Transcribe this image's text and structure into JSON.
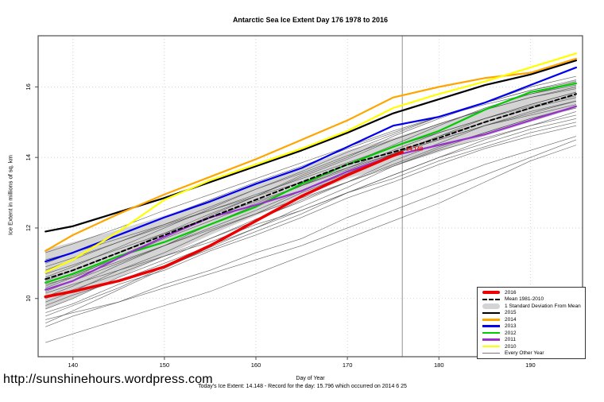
{
  "title": "Antarctic Sea Ice Extent Day 176 1978 to 2016",
  "footer": {
    "url": "http://sunshinehours.wordpress.com",
    "note": "Today's Ice Extent: 14.148  - Record for the day: 15.796 which occurred on 2014 6 25"
  },
  "chart_data": {
    "type": "line",
    "title": "Antarctic Sea Ice Extent Day 176 1978 to 2016",
    "xlabel": "Day of Year",
    "ylabel": "Ice Extent in millions of sq. km",
    "xlim": [
      136.2,
      195.7
    ],
    "ylim": [
      8.35,
      17.45
    ],
    "xticks": [
      140,
      150,
      160,
      170,
      180,
      190
    ],
    "yticks": [
      10,
      12,
      14,
      16
    ],
    "grid": "dotted",
    "grid_color": "#c9c9c9",
    "frame_color": "#4d4d4d",
    "vline": {
      "x": 176,
      "color": "#909090"
    },
    "x": [
      137,
      140,
      145,
      150,
      155,
      160,
      165,
      170,
      175,
      180,
      185,
      190,
      195
    ],
    "band": {
      "label": "1 Standard Deviation From Mean",
      "color": "#d4d4d4",
      "top": [
        11.4,
        11.6,
        11.95,
        12.35,
        12.8,
        13.25,
        13.72,
        14.2,
        14.55,
        14.95,
        15.4,
        15.8,
        16.2
      ],
      "bottom": [
        9.7,
        10.0,
        10.6,
        11.2,
        11.8,
        12.35,
        12.88,
        13.4,
        13.75,
        14.15,
        14.6,
        15.0,
        15.4
      ]
    },
    "series": [
      {
        "name": "2015",
        "color": "#000000",
        "width": 2.2,
        "values": [
          11.9,
          12.05,
          12.45,
          12.85,
          13.3,
          13.75,
          14.2,
          14.7,
          15.25,
          15.65,
          16.05,
          16.35,
          16.75
        ]
      },
      {
        "name": "2014",
        "color": "#FFA500",
        "width": 2.2,
        "values": [
          11.35,
          11.8,
          12.4,
          12.95,
          13.45,
          13.95,
          14.5,
          15.05,
          15.7,
          16.0,
          16.25,
          16.4,
          16.8
        ]
      },
      {
        "name": "2013",
        "color": "#0000EE",
        "width": 2.2,
        "values": [
          11.05,
          11.3,
          11.8,
          12.3,
          12.75,
          13.25,
          13.7,
          14.3,
          14.9,
          15.15,
          15.55,
          16.05,
          16.55
        ]
      },
      {
        "name": "2012",
        "color": "#00CC00",
        "width": 2.2,
        "values": [
          10.45,
          10.7,
          11.2,
          11.6,
          12.1,
          12.6,
          13.25,
          13.8,
          14.3,
          14.75,
          15.35,
          15.85,
          16.1
        ]
      },
      {
        "name": "2011",
        "color": "#9932CC",
        "width": 2.2,
        "values": [
          10.25,
          10.5,
          11.15,
          11.75,
          12.3,
          12.65,
          13.05,
          13.6,
          14.05,
          14.35,
          14.65,
          15.05,
          15.45
        ]
      },
      {
        "name": "2010",
        "color": "#FFFF00",
        "width": 2.2,
        "values": [
          10.75,
          11.1,
          11.9,
          12.8,
          13.35,
          13.8,
          14.25,
          14.75,
          15.4,
          15.8,
          16.15,
          16.55,
          16.95
        ]
      },
      {
        "name": "Mean 1981-2010",
        "color": "#000000",
        "width": 2,
        "dash": "5 3.5",
        "values": [
          10.55,
          10.8,
          11.3,
          11.8,
          12.3,
          12.8,
          13.3,
          13.8,
          14.15,
          14.55,
          15.0,
          15.4,
          15.8
        ]
      },
      {
        "name": "2016",
        "color": "#EE0000",
        "width": 3.5,
        "x": [
          137,
          140,
          145,
          150,
          155,
          160,
          165,
          170,
          175,
          176
        ],
        "values": [
          10.05,
          10.2,
          10.5,
          10.9,
          11.5,
          12.2,
          12.9,
          13.5,
          14.05,
          14.148
        ]
      }
    ],
    "others": {
      "name": "Every Other Year",
      "color": "#444444",
      "width": 0.65,
      "lines": [
        [
          8.75,
          9.0,
          9.4,
          9.8,
          10.2,
          10.7,
          11.2,
          11.7,
          12.2,
          12.7,
          13.3,
          13.9,
          14.35
        ],
        [
          9.2,
          9.5,
          9.9,
          10.4,
          10.8,
          11.3,
          11.7,
          12.3,
          12.8,
          13.3,
          13.8,
          14.2,
          14.6
        ],
        [
          9.3,
          9.65,
          10.25,
          10.85,
          11.45,
          12.0,
          12.6,
          13.15,
          13.75,
          14.25,
          14.7,
          15.1,
          15.45
        ],
        [
          9.4,
          9.6,
          9.9,
          10.3,
          10.7,
          11.1,
          11.5,
          12.0,
          12.5,
          13.0,
          13.5,
          14.0,
          14.5
        ],
        [
          9.5,
          9.8,
          10.3,
          10.9,
          11.4,
          11.9,
          12.4,
          13.0,
          13.5,
          14.0,
          14.5,
          14.9,
          15.3
        ],
        [
          9.6,
          9.85,
          10.4,
          10.8,
          11.35,
          11.8,
          12.3,
          12.85,
          13.3,
          13.8,
          14.25,
          14.6,
          14.9
        ],
        [
          9.7,
          10.0,
          10.6,
          11.1,
          11.7,
          12.2,
          12.8,
          13.3,
          13.9,
          14.4,
          14.9,
          15.3,
          15.6
        ],
        [
          9.8,
          10.1,
          10.5,
          11.0,
          11.5,
          12.0,
          12.5,
          13.0,
          13.5,
          14.0,
          14.4,
          14.8,
          15.1
        ],
        [
          9.9,
          10.2,
          10.8,
          11.3,
          11.9,
          12.4,
          13.0,
          13.5,
          14.1,
          14.6,
          15.1,
          15.5,
          15.85
        ],
        [
          10.0,
          10.25,
          10.7,
          11.2,
          11.7,
          12.25,
          12.75,
          13.3,
          13.8,
          14.3,
          14.7,
          15.1,
          15.4
        ],
        [
          10.05,
          10.35,
          10.95,
          11.5,
          12.1,
          12.65,
          13.2,
          13.8,
          14.35,
          14.9,
          15.4,
          15.8,
          16.1
        ],
        [
          10.15,
          10.4,
          10.8,
          11.2,
          11.6,
          12.1,
          12.5,
          13.0,
          13.4,
          13.9,
          14.3,
          14.7,
          15.0
        ],
        [
          10.2,
          10.5,
          11.0,
          11.5,
          12.0,
          12.5,
          13.05,
          13.55,
          14.1,
          14.6,
          15.0,
          15.4,
          15.7
        ],
        [
          10.3,
          10.6,
          11.2,
          11.75,
          12.35,
          12.9,
          13.5,
          14.0,
          14.6,
          15.1,
          15.55,
          16.0,
          16.3
        ],
        [
          10.35,
          10.65,
          11.15,
          11.7,
          12.2,
          12.7,
          13.2,
          13.7,
          14.2,
          14.7,
          15.1,
          15.5,
          15.85
        ],
        [
          10.4,
          10.6,
          11.05,
          11.5,
          11.95,
          12.4,
          12.85,
          13.3,
          13.75,
          14.2,
          14.55,
          14.9,
          15.2
        ],
        [
          10.5,
          10.8,
          11.3,
          11.85,
          12.4,
          12.9,
          13.45,
          13.95,
          14.5,
          14.95,
          15.35,
          15.7,
          15.95
        ],
        [
          10.6,
          10.9,
          11.45,
          12.0,
          12.55,
          13.1,
          13.6,
          14.15,
          14.65,
          15.15,
          15.55,
          15.9,
          16.15
        ],
        [
          10.7,
          10.95,
          11.4,
          11.85,
          12.3,
          12.75,
          13.2,
          13.65,
          14.1,
          14.5,
          14.9,
          15.2,
          15.5
        ],
        [
          10.8,
          11.1,
          11.6,
          12.1,
          12.6,
          13.1,
          13.55,
          14.05,
          14.5,
          14.95,
          15.35,
          15.7,
          16.0
        ],
        [
          10.9,
          11.15,
          11.6,
          12.05,
          12.5,
          12.95,
          13.4,
          13.85,
          14.3,
          14.7,
          15.1,
          15.45,
          15.75
        ],
        [
          11.0,
          11.3,
          11.8,
          12.3,
          12.8,
          13.3,
          13.75,
          14.25,
          14.7,
          15.15,
          15.55,
          15.9,
          16.2
        ],
        [
          11.1,
          11.3,
          11.7,
          12.1,
          12.5,
          12.9,
          13.3,
          13.7,
          14.1,
          14.5,
          14.9,
          15.25,
          15.6
        ],
        [
          11.3,
          11.55,
          12.0,
          12.5,
          12.95,
          13.4,
          13.85,
          14.3,
          14.75,
          15.15,
          15.5,
          15.8,
          16.05
        ]
      ]
    },
    "annotation": {
      "label": "14.148",
      "x": 176.4,
      "y": 14.2,
      "color": "#EE0000"
    },
    "legend": {
      "position": "bottom-right",
      "items": [
        {
          "label": "2016",
          "swatch": "thick",
          "color": "#EE0000"
        },
        {
          "label": "Mean 1981-2010",
          "swatch": "dashed",
          "color": "#000000"
        },
        {
          "label": "1 Standard Deviation From Mean",
          "swatch": "band",
          "color": "#d4d4d4"
        },
        {
          "label": "2015",
          "swatch": "line",
          "color": "#000000"
        },
        {
          "label": "2014",
          "swatch": "line",
          "color": "#FFA500"
        },
        {
          "label": "2013",
          "swatch": "line",
          "color": "#0000EE"
        },
        {
          "label": "2012",
          "swatch": "line",
          "color": "#00CC00"
        },
        {
          "label": "2011",
          "swatch": "line",
          "color": "#9932CC"
        },
        {
          "label": "2010",
          "swatch": "line",
          "color": "#FFFF00"
        },
        {
          "label": "Every Other Year",
          "swatch": "thin",
          "color": "#777777"
        }
      ]
    }
  }
}
